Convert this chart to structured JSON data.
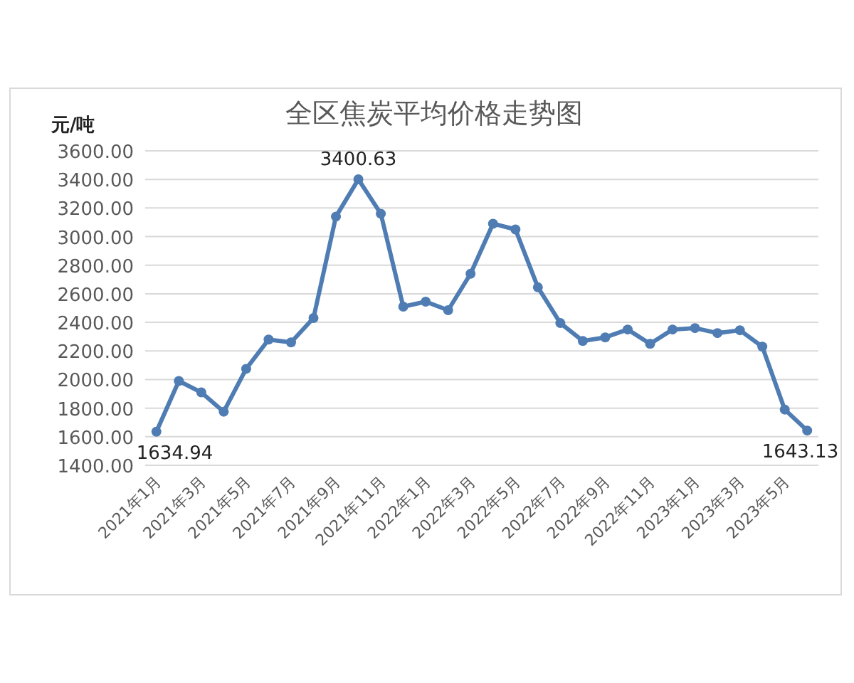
{
  "chart_data": {
    "type": "line",
    "title": "全区焦炭平均价格走势图",
    "ylabel": "元/吨",
    "categories": [
      "2021年1月",
      null,
      "2021年3月",
      null,
      "2021年5月",
      null,
      "2021年7月",
      null,
      "2021年9月",
      null,
      "2021年11月",
      null,
      "2022年1月",
      null,
      "2022年3月",
      null,
      "2022年5月",
      null,
      "2022年7月",
      null,
      "2022年9月",
      null,
      "2022年11月",
      null,
      "2023年1月",
      null,
      "2023年3月",
      null,
      "2023年5月",
      null
    ],
    "series": [
      {
        "color": "#4f7db3",
        "values": [
          1634.94,
          1990,
          1910,
          1775,
          2075,
          2280,
          2260,
          2430,
          3140,
          3400.63,
          3160,
          2510,
          2545,
          2485,
          2740,
          3090,
          3050,
          2645,
          2395,
          2270,
          2295,
          2350,
          2250,
          2350,
          2360,
          2325,
          2345,
          2230,
          1790,
          1643.13
        ],
        "value_labels": [
          "1634.94",
          null,
          null,
          null,
          null,
          null,
          null,
          null,
          null,
          "3400.63",
          null,
          null,
          null,
          null,
          null,
          null,
          null,
          null,
          null,
          null,
          null,
          null,
          null,
          null,
          null,
          null,
          null,
          null,
          null,
          "1643.13"
        ]
      }
    ],
    "ylim": [
      1400,
      3600
    ],
    "yticks": [
      {
        "value": 1400,
        "label": "1400.00"
      },
      {
        "value": 1600,
        "label": "1600.00"
      },
      {
        "value": 1800,
        "label": "1800.00"
      },
      {
        "value": 2000,
        "label": "2000.00"
      },
      {
        "value": 2200,
        "label": "2200.00"
      },
      {
        "value": 2400,
        "label": "2400.00"
      },
      {
        "value": 2600,
        "label": "2600.00"
      },
      {
        "value": 2800,
        "label": "2800.00"
      },
      {
        "value": 3000,
        "label": "3000.00"
      },
      {
        "value": 3200,
        "label": "3200.00"
      },
      {
        "value": 3400,
        "label": "3400.00"
      },
      {
        "value": 3600,
        "label": "3600.00"
      }
    ],
    "grid": "y",
    "marker": "circle",
    "line_style": "solid"
  }
}
